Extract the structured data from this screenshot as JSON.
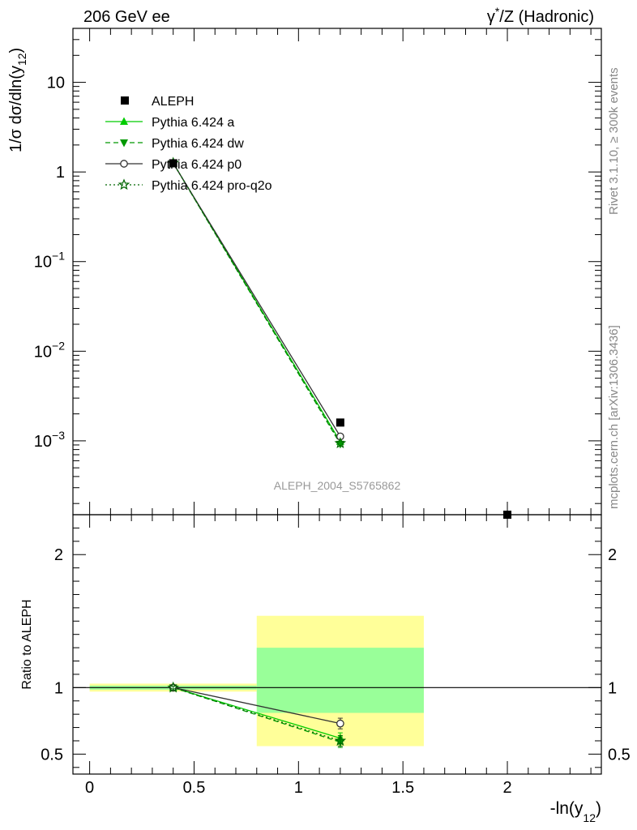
{
  "header": {
    "left": "206 GeV ee",
    "right_prefix": "γ",
    "right_sup": "*",
    "right_suffix": "/Z (Hadronic)"
  },
  "side_labels": {
    "rivet": "Rivet 3.1.10, ≥ 300k events",
    "mcplots": "mcplots.cern.ch [arXiv:1306.3436]"
  },
  "analysis_id": "ALEPH_2004_S5765862",
  "colors": {
    "data": "#000000",
    "pythia_a": "#00cc00",
    "pythia_dw": "#009900",
    "pythia_p0": "#333333",
    "pythia_proq2o": "#006600",
    "band_inner": "#99ff99",
    "band_outer": "#ffff99"
  },
  "chart_data": [
    {
      "type": "scatter",
      "panel": "main",
      "ylabel": {
        "main": "1/σ  dσ/dln(y",
        "sub": "12",
        "close": ")"
      },
      "xlim": [
        -0.08,
        2.45
      ],
      "ylim": [
        0.00015,
        40
      ],
      "yscale": "log",
      "y_tick_labels": [
        {
          "value": 10,
          "base": "10",
          "exp": ""
        },
        {
          "value": 1,
          "base": "1",
          "exp": ""
        },
        {
          "value": 0.1,
          "base": "10",
          "exp": "−1"
        },
        {
          "value": 0.01,
          "base": "10",
          "exp": "−2"
        },
        {
          "value": 0.001,
          "base": "10",
          "exp": "−3"
        }
      ],
      "legend": {
        "placement": "top-left",
        "entries": [
          {
            "key": "data",
            "label": "ALEPH"
          },
          {
            "key": "a",
            "label": "Pythia 6.424 a"
          },
          {
            "key": "dw",
            "label": "Pythia 6.424 dw"
          },
          {
            "key": "p0",
            "label": "Pythia 6.424 p0"
          },
          {
            "key": "proq2o",
            "label": "Pythia 6.424 pro-q2o"
          }
        ]
      },
      "data": {
        "name": "ALEPH",
        "x": [
          0.4,
          1.2,
          2.0
        ],
        "y": [
          1.25,
          0.0016,
          0.00012
        ]
      },
      "series": [
        {
          "key": "a",
          "name": "Pythia 6.424 a",
          "x": [
            0.4,
            1.2
          ],
          "y": [
            1.26,
            0.00098
          ]
        },
        {
          "key": "dw",
          "name": "Pythia 6.424 dw",
          "x": [
            0.4,
            1.2
          ],
          "y": [
            1.26,
            0.00092
          ]
        },
        {
          "key": "p0",
          "name": "Pythia 6.424 p0",
          "x": [
            0.4,
            1.2
          ],
          "y": [
            1.25,
            0.00112
          ]
        },
        {
          "key": "proq2o",
          "name": "Pythia 6.424 pro-q2o",
          "x": [
            0.4,
            1.2
          ],
          "y": [
            1.26,
            0.00094
          ]
        }
      ]
    },
    {
      "type": "line",
      "panel": "ratio",
      "ylabel": "Ratio to ALEPH",
      "xlabel": {
        "main": "-ln(y",
        "sub": "12",
        "close": ")"
      },
      "xlim": [
        -0.08,
        2.45
      ],
      "ylim": [
        0.35,
        2.3
      ],
      "x_ticks": [
        0,
        0.5,
        1,
        1.5,
        2
      ],
      "x_tick_labels": [
        "0",
        "0.5",
        "1",
        "1.5",
        "2"
      ],
      "y_ticks": [
        0.5,
        1,
        2
      ],
      "y_tick_labels": [
        "0.5",
        "1",
        "2"
      ],
      "bands": [
        {
          "x0": 0,
          "x1": 0.8,
          "inner": [
            0.985,
            1.015
          ],
          "outer": [
            0.97,
            1.03
          ]
        },
        {
          "x0": 0.8,
          "x1": 1.6,
          "inner": [
            0.81,
            1.3
          ],
          "outer": [
            0.56,
            1.54
          ]
        }
      ],
      "reference": 1,
      "series": [
        {
          "key": "a",
          "x": [
            0.4,
            1.2
          ],
          "y": [
            1.0,
            0.62
          ],
          "err": [
            0.01,
            0.04
          ]
        },
        {
          "key": "dw",
          "x": [
            0.4,
            1.2
          ],
          "y": [
            1.0,
            0.59
          ],
          "err": [
            0.01,
            0.04
          ]
        },
        {
          "key": "p0",
          "x": [
            0.4,
            1.2
          ],
          "y": [
            1.0,
            0.73
          ],
          "err": [
            0.01,
            0.04
          ]
        },
        {
          "key": "proq2o",
          "x": [
            0.4,
            1.2
          ],
          "y": [
            1.0,
            0.6
          ],
          "err": [
            0.01,
            0.04
          ]
        }
      ]
    }
  ]
}
